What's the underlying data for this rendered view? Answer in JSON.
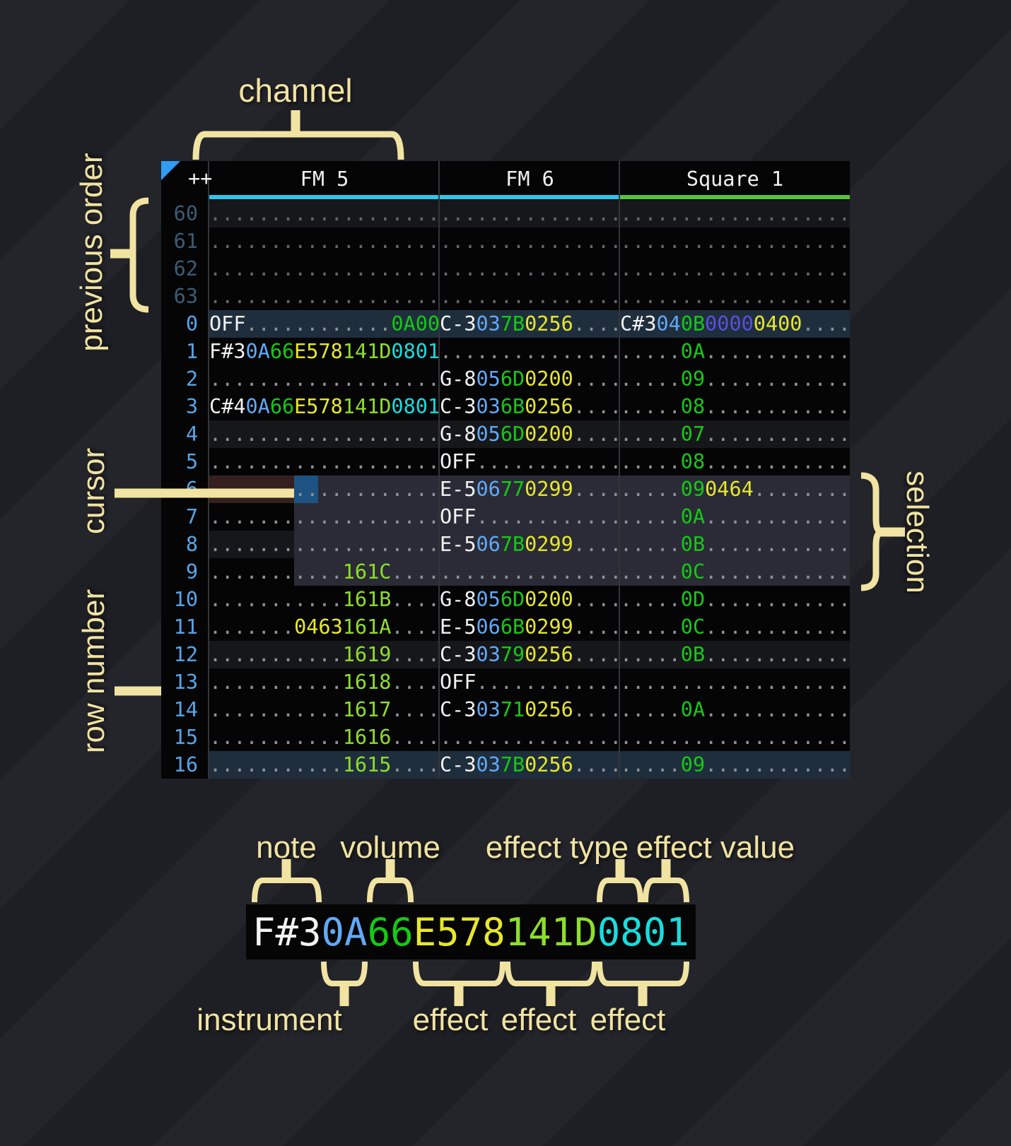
{
  "annotations": {
    "channel": "channel",
    "previous_order": "previous order",
    "cursor": "cursor",
    "row_number": "row number",
    "selection": "selection"
  },
  "header": {
    "corner": "++",
    "channels": [
      {
        "name": "FM 5"
      },
      {
        "name": "FM 6"
      },
      {
        "name": "Square 1"
      }
    ]
  },
  "colors": {
    "table-bg": "#050506",
    "note": "#f2f2f2",
    "ins": "#61a9f5",
    "vol": "#15c915",
    "fx-yellow": "#e7e72b",
    "fx-lime": "#8ede2b",
    "fx-cyan": "#16dede",
    "fx-indigo": "#5a4fe0",
    "dot": "#8e9196",
    "dot-dim": "#63666b",
    "rownum": "#55a6e8",
    "rownum-dim": "#3c5b74",
    "header-text": "#f2f2f2",
    "underline-fm": "#2dc6ec",
    "underline-sq": "#57c437",
    "cursor": "#1d5283",
    "selection": "#2a2b36",
    "hl-major": "#1f2e3d",
    "hl-minor": "#16171b",
    "cursor-row": "#35201f",
    "triangle": "#2f9df5",
    "separator": "#343539"
  },
  "pattern": {
    "previous_rows": [
      {
        "n": "60",
        "hl": "min",
        "fm5": [
          [
            "...................",
            "d"
          ]
        ],
        "fm6": [
          [
            "...............",
            "d"
          ]
        ],
        "sq1": [
          [
            "...................",
            "d"
          ]
        ]
      },
      {
        "n": "61",
        "fm5": [
          [
            "...................",
            "d"
          ]
        ],
        "fm6": [
          [
            "...............",
            "d"
          ]
        ],
        "sq1": [
          [
            "...................",
            "d"
          ]
        ]
      },
      {
        "n": "62",
        "fm5": [
          [
            "...................",
            "d"
          ]
        ],
        "fm6": [
          [
            "...............",
            "d"
          ]
        ],
        "sq1": [
          [
            "...................",
            "d"
          ]
        ]
      },
      {
        "n": "63",
        "fm5": [
          [
            "...................",
            "d"
          ]
        ],
        "fm6": [
          [
            "...............",
            "d"
          ]
        ],
        "sq1": [
          [
            "...................",
            "d"
          ]
        ]
      }
    ],
    "rows": [
      {
        "n": "0",
        "hl": "maj",
        "fm5": [
          [
            "OFF",
            "n"
          ],
          [
            "............",
            "d"
          ],
          [
            "0A00",
            "g"
          ]
        ],
        "fm6": [
          [
            "C-3",
            "n"
          ],
          [
            "03",
            "i"
          ],
          [
            "7B",
            "g"
          ],
          [
            "0256",
            "y"
          ],
          [
            "....",
            "d"
          ]
        ],
        "sq1": [
          [
            "C#3",
            "n"
          ],
          [
            "04",
            "i"
          ],
          [
            "0B",
            "g"
          ],
          [
            "0000",
            "p"
          ],
          [
            "0400",
            "y"
          ],
          [
            "....",
            "d"
          ]
        ]
      },
      {
        "n": "1",
        "fm5": [
          [
            "F#3",
            "n"
          ],
          [
            "0A",
            "i"
          ],
          [
            "66",
            "g"
          ],
          [
            "E578",
            "y"
          ],
          [
            "141D",
            "l"
          ],
          [
            "0801",
            "c"
          ]
        ],
        "fm6": [
          [
            "...............",
            "d"
          ]
        ],
        "sq1": [
          [
            ".....",
            "d"
          ],
          [
            "0A",
            "g"
          ],
          [
            "............",
            "d"
          ]
        ]
      },
      {
        "n": "2",
        "fm5": [
          [
            "...................",
            "d"
          ]
        ],
        "fm6": [
          [
            "G-8",
            "n"
          ],
          [
            "05",
            "i"
          ],
          [
            "6D",
            "g"
          ],
          [
            "0200",
            "y"
          ],
          [
            "....",
            "d"
          ]
        ],
        "sq1": [
          [
            ".....",
            "d"
          ],
          [
            "09",
            "g"
          ],
          [
            "............",
            "d"
          ]
        ]
      },
      {
        "n": "3",
        "fm5": [
          [
            "C#4",
            "n"
          ],
          [
            "0A",
            "i"
          ],
          [
            "66",
            "g"
          ],
          [
            "E578",
            "y"
          ],
          [
            "141D",
            "l"
          ],
          [
            "0801",
            "c"
          ]
        ],
        "fm6": [
          [
            "C-3",
            "n"
          ],
          [
            "03",
            "i"
          ],
          [
            "6B",
            "g"
          ],
          [
            "0256",
            "y"
          ],
          [
            "....",
            "d"
          ]
        ],
        "sq1": [
          [
            ".....",
            "d"
          ],
          [
            "08",
            "g"
          ],
          [
            "............",
            "d"
          ]
        ]
      },
      {
        "n": "4",
        "hl": "min",
        "fm5": [
          [
            "...................",
            "d"
          ]
        ],
        "fm6": [
          [
            "G-8",
            "n"
          ],
          [
            "05",
            "i"
          ],
          [
            "6D",
            "g"
          ],
          [
            "0200",
            "y"
          ],
          [
            "....",
            "d"
          ]
        ],
        "sq1": [
          [
            ".....",
            "d"
          ],
          [
            "07",
            "g"
          ],
          [
            "............",
            "d"
          ]
        ]
      },
      {
        "n": "5",
        "fm5": [
          [
            "...................",
            "d"
          ]
        ],
        "fm6": [
          [
            "OFF",
            "n"
          ],
          [
            "............",
            "d"
          ]
        ],
        "sq1": [
          [
            ".....",
            "d"
          ],
          [
            "08",
            "g"
          ],
          [
            "............",
            "d"
          ]
        ]
      },
      {
        "n": "6",
        "fm5": [
          [
            "...................",
            "d"
          ]
        ],
        "fm6": [
          [
            "E-5",
            "n"
          ],
          [
            "06",
            "i"
          ],
          [
            "77",
            "g"
          ],
          [
            "0299",
            "y"
          ],
          [
            "....",
            "d"
          ]
        ],
        "sq1": [
          [
            ".....",
            "d"
          ],
          [
            "09",
            "g"
          ],
          [
            "0464",
            "y"
          ],
          [
            "........",
            "d"
          ]
        ]
      },
      {
        "n": "7",
        "fm5": [
          [
            "...................",
            "d"
          ]
        ],
        "fm6": [
          [
            "OFF",
            "n"
          ],
          [
            "............",
            "d"
          ]
        ],
        "sq1": [
          [
            ".....",
            "d"
          ],
          [
            "0A",
            "g"
          ],
          [
            "............",
            "d"
          ]
        ]
      },
      {
        "n": "8",
        "hl": "min",
        "fm5": [
          [
            "...................",
            "d"
          ]
        ],
        "fm6": [
          [
            "E-5",
            "n"
          ],
          [
            "06",
            "i"
          ],
          [
            "7B",
            "g"
          ],
          [
            "0299",
            "y"
          ],
          [
            "....",
            "d"
          ]
        ],
        "sq1": [
          [
            ".....",
            "d"
          ],
          [
            "0B",
            "g"
          ],
          [
            "............",
            "d"
          ]
        ]
      },
      {
        "n": "9",
        "fm5": [
          [
            "...........",
            "d"
          ],
          [
            "161C",
            "l"
          ],
          [
            "....",
            "d"
          ]
        ],
        "fm6": [
          [
            "...............",
            "d"
          ]
        ],
        "sq1": [
          [
            ".....",
            "d"
          ],
          [
            "0C",
            "g"
          ],
          [
            "............",
            "d"
          ]
        ]
      },
      {
        "n": "10",
        "fm5": [
          [
            "...........",
            "d"
          ],
          [
            "161B",
            "l"
          ],
          [
            "....",
            "d"
          ]
        ],
        "fm6": [
          [
            "G-8",
            "n"
          ],
          [
            "05",
            "i"
          ],
          [
            "6D",
            "g"
          ],
          [
            "0200",
            "y"
          ],
          [
            "....",
            "d"
          ]
        ],
        "sq1": [
          [
            ".....",
            "d"
          ],
          [
            "0D",
            "g"
          ],
          [
            "............",
            "d"
          ]
        ]
      },
      {
        "n": "11",
        "fm5": [
          [
            ".......",
            "d"
          ],
          [
            "0463",
            "y"
          ],
          [
            "161A",
            "l"
          ],
          [
            "....",
            "d"
          ]
        ],
        "fm6": [
          [
            "E-5",
            "n"
          ],
          [
            "06",
            "i"
          ],
          [
            "6B",
            "g"
          ],
          [
            "0299",
            "y"
          ],
          [
            "....",
            "d"
          ]
        ],
        "sq1": [
          [
            ".....",
            "d"
          ],
          [
            "0C",
            "g"
          ],
          [
            "............",
            "d"
          ]
        ]
      },
      {
        "n": "12",
        "hl": "min",
        "fm5": [
          [
            "...........",
            "d"
          ],
          [
            "1619",
            "l"
          ],
          [
            "....",
            "d"
          ]
        ],
        "fm6": [
          [
            "C-3",
            "n"
          ],
          [
            "03",
            "i"
          ],
          [
            "79",
            "g"
          ],
          [
            "0256",
            "y"
          ],
          [
            "....",
            "d"
          ]
        ],
        "sq1": [
          [
            ".....",
            "d"
          ],
          [
            "0B",
            "g"
          ],
          [
            "............",
            "d"
          ]
        ]
      },
      {
        "n": "13",
        "fm5": [
          [
            "...........",
            "d"
          ],
          [
            "1618",
            "l"
          ],
          [
            "....",
            "d"
          ]
        ],
        "fm6": [
          [
            "OFF",
            "n"
          ],
          [
            "............",
            "d"
          ]
        ],
        "sq1": [
          [
            "...................",
            "d"
          ]
        ]
      },
      {
        "n": "14",
        "fm5": [
          [
            "...........",
            "d"
          ],
          [
            "1617",
            "l"
          ],
          [
            "....",
            "d"
          ]
        ],
        "fm6": [
          [
            "C-3",
            "n"
          ],
          [
            "03",
            "i"
          ],
          [
            "71",
            "g"
          ],
          [
            "0256",
            "y"
          ],
          [
            "....",
            "d"
          ]
        ],
        "sq1": [
          [
            ".....",
            "d"
          ],
          [
            "0A",
            "g"
          ],
          [
            "............",
            "d"
          ]
        ]
      },
      {
        "n": "15",
        "fm5": [
          [
            "...........",
            "d"
          ],
          [
            "1616",
            "l"
          ],
          [
            "....",
            "d"
          ]
        ],
        "fm6": [
          [
            "...............",
            "d"
          ]
        ],
        "sq1": [
          [
            "...................",
            "d"
          ]
        ]
      },
      {
        "n": "16",
        "hl": "maj",
        "fm5": [
          [
            "...........",
            "d"
          ],
          [
            "1615",
            "l"
          ],
          [
            "....",
            "d"
          ]
        ],
        "fm6": [
          [
            "C-3",
            "n"
          ],
          [
            "03",
            "i"
          ],
          [
            "7B",
            "g"
          ],
          [
            "0256",
            "y"
          ],
          [
            "....",
            "d"
          ]
        ],
        "sq1": [
          [
            ".....",
            "d"
          ],
          [
            "09",
            "g"
          ],
          [
            "............",
            "d"
          ]
        ]
      }
    ]
  },
  "cell_diagram": {
    "segments": [
      [
        "F#3",
        "n"
      ],
      [
        "0A",
        "i"
      ],
      [
        "66",
        "g"
      ],
      [
        "E578",
        "y"
      ],
      [
        "141D",
        "l"
      ],
      [
        "0801",
        "c"
      ]
    ],
    "top_labels": [
      "note",
      "volume",
      "effect type",
      "effect value"
    ],
    "bottom_labels": [
      "instrument",
      "effect",
      "effect",
      "effect"
    ]
  }
}
